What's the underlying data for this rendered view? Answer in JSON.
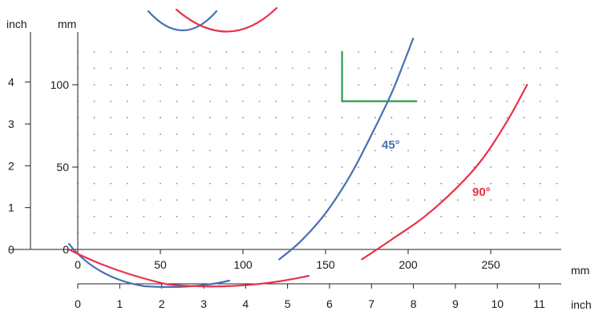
{
  "chart_data": {
    "type": "line",
    "units": {
      "left_outer": "inch",
      "left_inner": "mm",
      "bottom_inner": "mm",
      "bottom_outer": "inch"
    },
    "y_inch_ticks": [
      "0",
      "1",
      "2",
      "3",
      "4"
    ],
    "y_mm_ticks": [
      "0",
      "50",
      "100"
    ],
    "x_mm_ticks": [
      "0",
      "50",
      "100",
      "150",
      "200",
      "250"
    ],
    "x_inch_ticks": [
      "0",
      "1",
      "2",
      "3",
      "4",
      "5",
      "6",
      "7",
      "8",
      "9",
      "10",
      "11"
    ],
    "xlim_mm": [
      0,
      290
    ],
    "ylim_mm": [
      0,
      120
    ],
    "grid": "dotted",
    "colors": {
      "blue": "#4a6fb3",
      "red": "#e8324a",
      "green": "#2e9b4b"
    },
    "series": [
      {
        "name": "45°",
        "color": "#4a6fb3",
        "x": [
          122,
          135,
          150,
          165,
          178,
          190,
          198,
          203
        ],
        "y": [
          -6,
          5,
          22,
          45,
          70,
          95,
          115,
          128
        ]
      },
      {
        "name": "90°",
        "color": "#e8324a",
        "x": [
          172,
          190,
          210,
          230,
          245,
          260,
          272
        ],
        "y": [
          -6,
          6,
          20,
          38,
          55,
          78,
          100
        ]
      }
    ],
    "corner_mark": {
      "color": "#2e9b4b",
      "x_mm": [
        160,
        160,
        205
      ],
      "y_mm": [
        120,
        90,
        90
      ]
    }
  }
}
